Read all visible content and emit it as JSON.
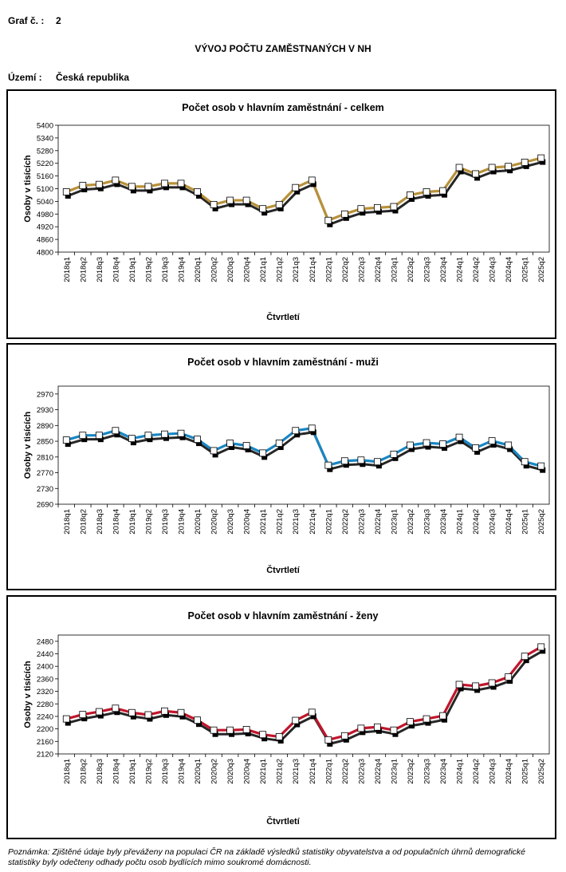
{
  "header": {
    "graph_label": "Graf č. :",
    "graph_number": "2",
    "title": "VÝVOJ POČTU ZAMĚSTNANÝCH V NH",
    "territory_label": "Území :",
    "territory_value": "Česká republika"
  },
  "note": "Poznámka: Zjištěné údaje byly převáženy na populaci ČR na základě výsledků statistiky obyvatelstva a od populačních úhrnů demografické statistiky byly odečteny odhady počtu osob bydlících mimo soukromé domácnosti.",
  "chart_data": [
    {
      "type": "line",
      "title": "Počet osob  v hlavním zaměstnání - celkem",
      "xlabel": "Čtvrtletí",
      "ylabel": "Osoby v tisících",
      "ylim": [
        4800,
        5400
      ],
      "yticks": [
        "4800",
        "4860",
        "4920",
        "4980",
        "5040",
        "5100",
        "5160",
        "5220",
        "5280",
        "5340",
        "5400"
      ],
      "color": "#b8913a",
      "categories": [
        "2018q1",
        "2018q2",
        "2018q3",
        "2018q4",
        "2019q1",
        "2019q2",
        "2019q3",
        "2019q4",
        "2020q1",
        "2020q2",
        "2020q3",
        "2020q4",
        "2021q1",
        "2021q2",
        "2021q3",
        "2021q4",
        "2022q1",
        "2022q2",
        "2022q3",
        "2022q4",
        "2023q1",
        "2023q2",
        "2023q3",
        "2023q4",
        "2024q1",
        "2024q2",
        "2024q3",
        "2024q4",
        "2025q1",
        "2025q2"
      ],
      "values": [
        5085,
        5115,
        5120,
        5140,
        5110,
        5110,
        5125,
        5125,
        5085,
        5025,
        5045,
        5045,
        5005,
        5025,
        5105,
        5140,
        4950,
        4980,
        5005,
        5010,
        5015,
        5070,
        5085,
        5090,
        5200,
        5170,
        5200,
        5205,
        5225,
        5245
      ]
    },
    {
      "type": "line",
      "title": "Počet osob  v hlavním zaměstnání - muži",
      "xlabel": "Čtvrtletí",
      "ylabel": "Osoby v tisících",
      "ylim": [
        2690,
        2990
      ],
      "yticks": [
        "2690",
        "2730",
        "2770",
        "2810",
        "2850",
        "2890",
        "2930",
        "2970"
      ],
      "color": "#1a86c2",
      "categories": [
        "2018q1",
        "2018q2",
        "2018q3",
        "2018q4",
        "2019q1",
        "2019q2",
        "2019q3",
        "2019q4",
        "2020q1",
        "2020q2",
        "2020q3",
        "2020q4",
        "2021q1",
        "2021q2",
        "2021q3",
        "2021q4",
        "2022q1",
        "2022q2",
        "2022q3",
        "2022q4",
        "2023q1",
        "2023q2",
        "2023q3",
        "2023q4",
        "2024q1",
        "2024q2",
        "2024q3",
        "2024q4",
        "2025q1",
        "2025q2"
      ],
      "values": [
        2853,
        2865,
        2865,
        2877,
        2857,
        2865,
        2868,
        2870,
        2855,
        2826,
        2845,
        2839,
        2820,
        2845,
        2877,
        2883,
        2789,
        2800,
        2802,
        2798,
        2817,
        2840,
        2846,
        2843,
        2860,
        2833,
        2851,
        2840,
        2798,
        2787
      ]
    },
    {
      "type": "line",
      "title": "Počet osob  v hlavním zaměstnání - ženy",
      "xlabel": "Čtvrtletí",
      "ylabel": "Osoby v tisících",
      "ylim": [
        2120,
        2500
      ],
      "yticks": [
        "2120",
        "2160",
        "2200",
        "2240",
        "2280",
        "2320",
        "2360",
        "2400",
        "2440",
        "2480"
      ],
      "color": "#c0162c",
      "categories": [
        "2018q1",
        "2018q2",
        "2018q3",
        "2018q4",
        "2019q1",
        "2019q2",
        "2019q3",
        "2019q4",
        "2020q1",
        "2020q2",
        "2020q3",
        "2020q4",
        "2021q1",
        "2021q2",
        "2021q3",
        "2021q4",
        "2022q1",
        "2022q2",
        "2022q3",
        "2022q4",
        "2023q1",
        "2023q2",
        "2023q3",
        "2023q4",
        "2024q1",
        "2024q2",
        "2024q3",
        "2024q4",
        "2025q1",
        "2025q2"
      ],
      "values": [
        2232,
        2246,
        2255,
        2266,
        2252,
        2245,
        2257,
        2252,
        2228,
        2196,
        2196,
        2198,
        2182,
        2175,
        2227,
        2253,
        2165,
        2178,
        2202,
        2206,
        2196,
        2223,
        2232,
        2242,
        2342,
        2337,
        2347,
        2366,
        2432,
        2462
      ]
    }
  ]
}
